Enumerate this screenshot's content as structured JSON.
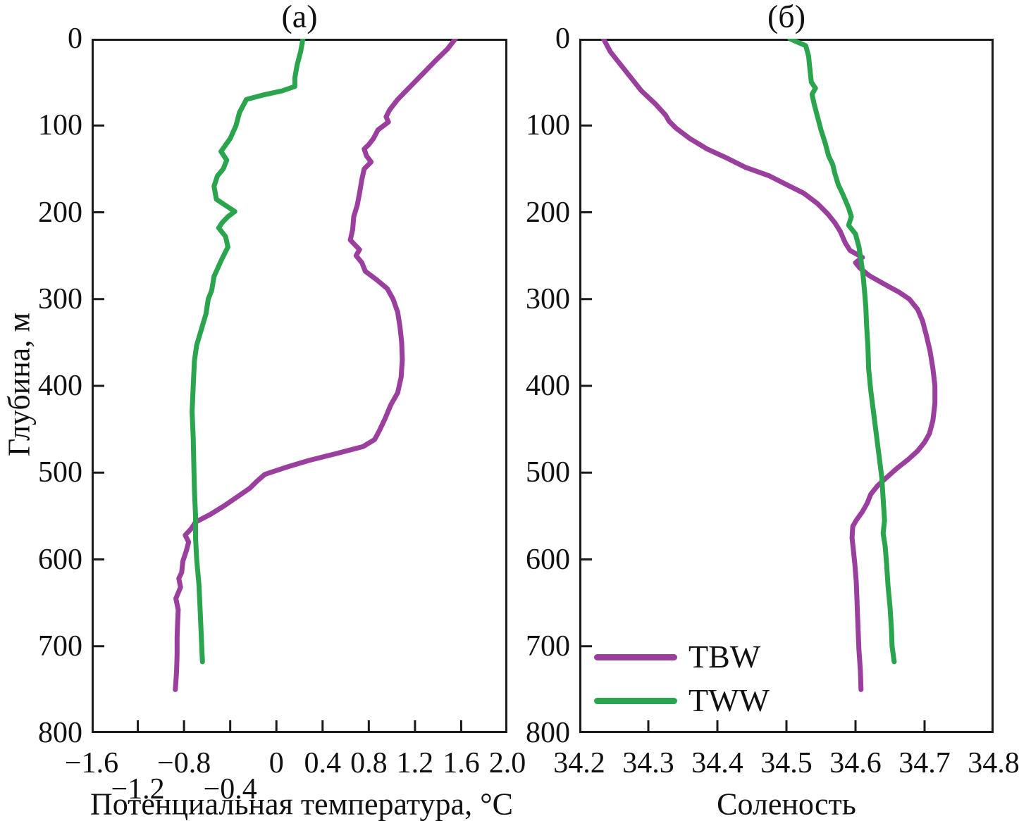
{
  "figure": {
    "ylabel": "Глубина, м",
    "background": "#ffffff",
    "axis_color": "#1a1a1a"
  },
  "legend": {
    "entries": [
      {
        "label": "TBW",
        "color": "#9B3F9E"
      },
      {
        "label": "TWW",
        "color": "#2BA44E"
      }
    ]
  },
  "chart_data": [
    {
      "id": "a",
      "type": "line",
      "title": "(а)",
      "xlabel": "Потенциальная температура, °C",
      "ylabel": "Глубина, м",
      "xlim": [
        -1.6,
        2.0
      ],
      "ylim": [
        0,
        800
      ],
      "y_inverted": true,
      "grid": false,
      "legend_position": "none",
      "xticks": [
        {
          "v": -1.6,
          "label": "−1.6",
          "row": 1
        },
        {
          "v": -1.2,
          "label": "−1.2",
          "row": 2
        },
        {
          "v": -0.8,
          "label": "−0.8",
          "row": 1
        },
        {
          "v": -0.4,
          "label": "−0.4",
          "row": 2
        },
        {
          "v": 0.0,
          "label": "0",
          "row": 1
        },
        {
          "v": 0.4,
          "label": "0.4",
          "row": 1
        },
        {
          "v": 0.8,
          "label": "0.8",
          "row": 1
        },
        {
          "v": 1.2,
          "label": "1.2",
          "row": 1
        },
        {
          "v": 1.6,
          "label": "1.6",
          "row": 1
        },
        {
          "v": 2.0,
          "label": "2.0",
          "row": 1
        }
      ],
      "yticks": [
        {
          "v": 0,
          "label": "0"
        },
        {
          "v": 100,
          "label": "100"
        },
        {
          "v": 200,
          "label": "200"
        },
        {
          "v": 300,
          "label": "300"
        },
        {
          "v": 400,
          "label": "400"
        },
        {
          "v": 500,
          "label": "500"
        },
        {
          "v": 600,
          "label": "600"
        },
        {
          "v": 700,
          "label": "700"
        },
        {
          "v": 800,
          "label": "800"
        }
      ],
      "series": [
        {
          "name": "TBW",
          "color": "#9B3F9E",
          "points": [
            [
              0,
              1.55
            ],
            [
              12,
              1.48
            ],
            [
              25,
              1.38
            ],
            [
              40,
              1.27
            ],
            [
              55,
              1.16
            ],
            [
              70,
              1.05
            ],
            [
              82,
              0.98
            ],
            [
              90,
              0.95
            ],
            [
              96,
              0.97
            ],
            [
              105,
              0.88
            ],
            [
              115,
              0.84
            ],
            [
              122,
              0.8
            ],
            [
              127,
              0.76
            ],
            [
              135,
              0.78
            ],
            [
              142,
              0.82
            ],
            [
              150,
              0.76
            ],
            [
              162,
              0.74
            ],
            [
              178,
              0.72
            ],
            [
              192,
              0.7
            ],
            [
              205,
              0.67
            ],
            [
              220,
              0.66
            ],
            [
              232,
              0.64
            ],
            [
              243,
              0.72
            ],
            [
              250,
              0.69
            ],
            [
              258,
              0.74
            ],
            [
              268,
              0.77
            ],
            [
              278,
              0.87
            ],
            [
              288,
              0.96
            ],
            [
              300,
              1.01
            ],
            [
              315,
              1.05
            ],
            [
              332,
              1.07
            ],
            [
              350,
              1.085
            ],
            [
              370,
              1.09
            ],
            [
              390,
              1.08
            ],
            [
              408,
              1.05
            ],
            [
              422,
              0.99
            ],
            [
              438,
              0.94
            ],
            [
              452,
              0.89
            ],
            [
              462,
              0.85
            ],
            [
              470,
              0.75
            ],
            [
              478,
              0.52
            ],
            [
              486,
              0.28
            ],
            [
              494,
              0.08
            ],
            [
              502,
              -0.1
            ],
            [
              510,
              -0.17
            ],
            [
              518,
              -0.23
            ],
            [
              528,
              -0.34
            ],
            [
              538,
              -0.45
            ],
            [
              548,
              -0.57
            ],
            [
              557,
              -0.7
            ],
            [
              565,
              -0.74
            ],
            [
              572,
              -0.79
            ],
            [
              580,
              -0.76
            ],
            [
              590,
              -0.78
            ],
            [
              602,
              -0.81
            ],
            [
              615,
              -0.82
            ],
            [
              622,
              -0.845
            ],
            [
              632,
              -0.83
            ],
            [
              645,
              -0.87
            ],
            [
              658,
              -0.85
            ],
            [
              672,
              -0.855
            ],
            [
              690,
              -0.86
            ],
            [
              710,
              -0.86
            ],
            [
              730,
              -0.865
            ],
            [
              750,
              -0.875
            ]
          ]
        },
        {
          "name": "TWW",
          "color": "#2BA44E",
          "points": [
            [
              0,
              0.23
            ],
            [
              15,
              0.21
            ],
            [
              30,
              0.18
            ],
            [
              45,
              0.16
            ],
            [
              55,
              0.16
            ],
            [
              60,
              0.05
            ],
            [
              65,
              -0.12
            ],
            [
              70,
              -0.26
            ],
            [
              85,
              -0.32
            ],
            [
              100,
              -0.35
            ],
            [
              115,
              -0.4
            ],
            [
              130,
              -0.48
            ],
            [
              140,
              -0.43
            ],
            [
              150,
              -0.46
            ],
            [
              158,
              -0.51
            ],
            [
              170,
              -0.54
            ],
            [
              185,
              -0.52
            ],
            [
              193,
              -0.43
            ],
            [
              199,
              -0.36
            ],
            [
              205,
              -0.42
            ],
            [
              212,
              -0.47
            ],
            [
              218,
              -0.5
            ],
            [
              228,
              -0.44
            ],
            [
              240,
              -0.42
            ],
            [
              256,
              -0.48
            ],
            [
              274,
              -0.54
            ],
            [
              290,
              -0.56
            ],
            [
              300,
              -0.59
            ],
            [
              317,
              -0.61
            ],
            [
              335,
              -0.65
            ],
            [
              353,
              -0.69
            ],
            [
              371,
              -0.71
            ],
            [
              400,
              -0.72
            ],
            [
              430,
              -0.73
            ],
            [
              460,
              -0.72
            ],
            [
              490,
              -0.715
            ],
            [
              520,
              -0.71
            ],
            [
              550,
              -0.7
            ],
            [
              575,
              -0.7
            ],
            [
              600,
              -0.69
            ],
            [
              630,
              -0.67
            ],
            [
              660,
              -0.66
            ],
            [
              690,
              -0.65
            ],
            [
              705,
              -0.645
            ],
            [
              718,
              -0.64
            ]
          ]
        }
      ]
    },
    {
      "id": "b",
      "type": "line",
      "title": "(б)",
      "xlabel": "Соленость",
      "ylabel": "Глубина, м",
      "xlim": [
        34.2,
        34.8
      ],
      "ylim": [
        0,
        800
      ],
      "y_inverted": true,
      "grid": false,
      "legend_position": "lower-left",
      "xticks": [
        {
          "v": 34.2,
          "label": "34.2",
          "row": 1
        },
        {
          "v": 34.3,
          "label": "34.3",
          "row": 1
        },
        {
          "v": 34.4,
          "label": "34.4",
          "row": 1
        },
        {
          "v": 34.5,
          "label": "34.5",
          "row": 1
        },
        {
          "v": 34.6,
          "label": "34.6",
          "row": 1
        },
        {
          "v": 34.7,
          "label": "34.7",
          "row": 1
        },
        {
          "v": 34.8,
          "label": "34.8",
          "row": 1
        }
      ],
      "yticks": [
        {
          "v": 0,
          "label": "0"
        },
        {
          "v": 100,
          "label": "100"
        },
        {
          "v": 200,
          "label": "200"
        },
        {
          "v": 300,
          "label": "300"
        },
        {
          "v": 400,
          "label": "400"
        },
        {
          "v": 500,
          "label": "500"
        },
        {
          "v": 600,
          "label": "600"
        },
        {
          "v": 700,
          "label": "700"
        },
        {
          "v": 800,
          "label": "800"
        }
      ],
      "series": [
        {
          "name": "TBW",
          "color": "#9B3F9E",
          "points": [
            [
              0,
              34.235
            ],
            [
              15,
              34.245
            ],
            [
              30,
              34.26
            ],
            [
              45,
              34.275
            ],
            [
              60,
              34.29
            ],
            [
              75,
              34.31
            ],
            [
              88,
              34.325
            ],
            [
              95,
              34.33
            ],
            [
              103,
              34.34
            ],
            [
              115,
              34.36
            ],
            [
              127,
              34.385
            ],
            [
              138,
              34.415
            ],
            [
              148,
              34.44
            ],
            [
              158,
              34.475
            ],
            [
              168,
              34.5
            ],
            [
              178,
              34.525
            ],
            [
              190,
              34.545
            ],
            [
              202,
              34.56
            ],
            [
              212,
              34.57
            ],
            [
              222,
              34.578
            ],
            [
              235,
              34.585
            ],
            [
              244,
              34.592
            ],
            [
              252,
              34.61
            ],
            [
              258,
              34.6
            ],
            [
              264,
              34.606
            ],
            [
              273,
              34.62
            ],
            [
              282,
              34.64
            ],
            [
              292,
              34.663
            ],
            [
              300,
              34.678
            ],
            [
              312,
              34.69
            ],
            [
              325,
              34.697
            ],
            [
              340,
              34.702
            ],
            [
              360,
              34.708
            ],
            [
              380,
              34.712
            ],
            [
              400,
              34.715
            ],
            [
              420,
              34.715
            ],
            [
              440,
              34.712
            ],
            [
              455,
              34.707
            ],
            [
              465,
              34.7
            ],
            [
              475,
              34.69
            ],
            [
              485,
              34.676
            ],
            [
              495,
              34.66
            ],
            [
              505,
              34.646
            ],
            [
              515,
              34.632
            ],
            [
              525,
              34.622
            ],
            [
              535,
              34.617
            ],
            [
              545,
              34.61
            ],
            [
              555,
              34.601
            ],
            [
              562,
              34.596
            ],
            [
              575,
              34.595
            ],
            [
              590,
              34.597
            ],
            [
              605,
              34.599
            ],
            [
              625,
              34.601
            ],
            [
              645,
              34.602
            ],
            [
              665,
              34.603
            ],
            [
              685,
              34.604
            ],
            [
              705,
              34.605
            ],
            [
              728,
              34.607
            ],
            [
              750,
              34.608
            ]
          ]
        },
        {
          "name": "TWW",
          "color": "#2BA44E",
          "points": [
            [
              0,
              34.505
            ],
            [
              8,
              34.528
            ],
            [
              20,
              34.532
            ],
            [
              35,
              34.534
            ],
            [
              50,
              34.536
            ],
            [
              57,
              34.542
            ],
            [
              64,
              34.537
            ],
            [
              75,
              34.54
            ],
            [
              90,
              34.545
            ],
            [
              105,
              34.55
            ],
            [
              120,
              34.556
            ],
            [
              135,
              34.561
            ],
            [
              145,
              34.567
            ],
            [
              155,
              34.57
            ],
            [
              168,
              34.575
            ],
            [
              180,
              34.582
            ],
            [
              195,
              34.59
            ],
            [
              205,
              34.594
            ],
            [
              215,
              34.59
            ],
            [
              225,
              34.6
            ],
            [
              240,
              34.605
            ],
            [
              255,
              34.608
            ],
            [
              273,
              34.611
            ],
            [
              290,
              34.613
            ],
            [
              310,
              34.615
            ],
            [
              330,
              34.616
            ],
            [
              355,
              34.618
            ],
            [
              380,
              34.619
            ],
            [
              405,
              34.622
            ],
            [
              430,
              34.626
            ],
            [
              455,
              34.63
            ],
            [
              480,
              34.634
            ],
            [
              505,
              34.638
            ],
            [
              530,
              34.64
            ],
            [
              555,
              34.642
            ],
            [
              570,
              34.64
            ],
            [
              585,
              34.643
            ],
            [
              605,
              34.645
            ],
            [
              630,
              34.647
            ],
            [
              655,
              34.65
            ],
            [
              680,
              34.652
            ],
            [
              700,
              34.653
            ],
            [
              718,
              34.656
            ]
          ]
        }
      ]
    }
  ]
}
